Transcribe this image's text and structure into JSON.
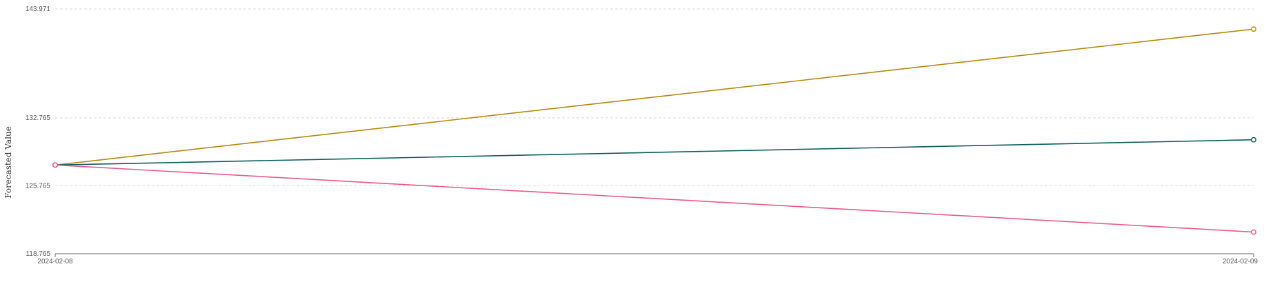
{
  "chart_data": {
    "type": "line",
    "title": "",
    "xlabel": "",
    "ylabel": "Forecasted Value",
    "x": [
      "2024-02-08",
      "2024-02-09"
    ],
    "yticks": [
      "143.971",
      "132.765",
      "125.765",
      "118.765"
    ],
    "ylim": [
      118.765,
      143.971
    ],
    "grid": true,
    "series": [
      {
        "color": "#b8860b",
        "values": [
          127.9,
          141.9
        ]
      },
      {
        "color": "#0b5d5e",
        "values": [
          127.9,
          130.5
        ]
      },
      {
        "color": "#e85a8a",
        "values": [
          127.9,
          121.0
        ]
      }
    ]
  }
}
